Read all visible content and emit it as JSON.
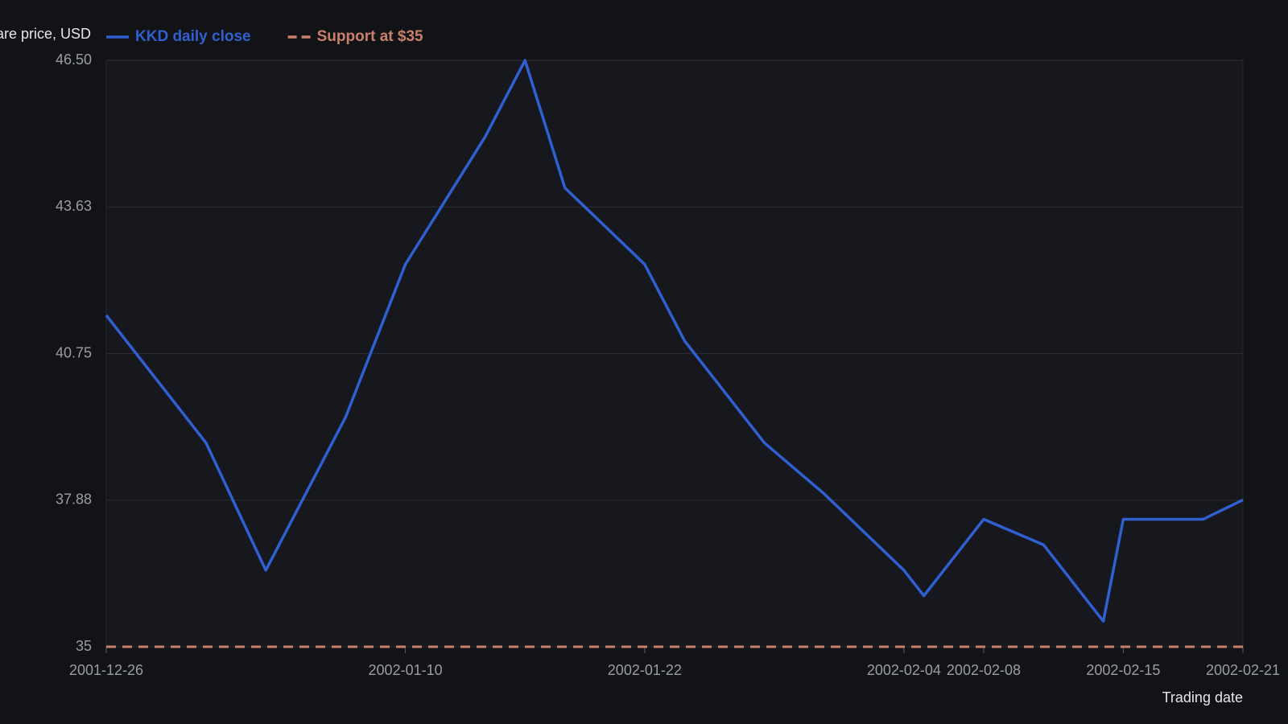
{
  "chart_data": {
    "type": "line",
    "x_label": "Trading date",
    "y_label": "Share price, USD",
    "x": [
      "2001-12-26",
      "2001-12-31",
      "2002-01-03",
      "2002-01-07",
      "2002-01-10",
      "2002-01-14",
      "2002-01-16",
      "2002-01-18",
      "2002-01-22",
      "2002-01-24",
      "2002-01-28",
      "2002-01-31",
      "2002-02-04",
      "2002-02-05",
      "2002-02-08",
      "2002-02-11",
      "2002-02-14",
      "2002-02-15",
      "2002-02-19",
      "2002-02-21"
    ],
    "series": [
      {
        "name": "KKD daily close",
        "color": "#2f5fd0",
        "values": [
          41.5,
          39,
          36.5,
          39.5,
          42.5,
          45,
          46.5,
          44,
          42.5,
          41,
          39,
          38,
          36.5,
          36,
          37.5,
          37,
          35.5,
          37.5,
          37.5,
          37.88
        ]
      }
    ],
    "reference_lines": [
      {
        "name": "Support at $35",
        "value": 35,
        "color": "#c9806b",
        "dashed": true
      }
    ],
    "xlim": [
      "2001-12-26",
      "2002-02-21"
    ],
    "xticks": [
      "2001-12-26",
      "2002-01-10",
      "2002-01-22",
      "2002-02-04",
      "2002-02-08",
      "2002-02-15",
      "2002-02-21"
    ],
    "ylim": [
      35,
      46.5
    ],
    "yticks": [
      35,
      {
        "value": 37.875,
        "label": "37.88"
      },
      40.75,
      {
        "value": 43.625,
        "label": "43.63"
      },
      {
        "value": 46.5,
        "label": "46.50"
      }
    ],
    "grid": true
  }
}
